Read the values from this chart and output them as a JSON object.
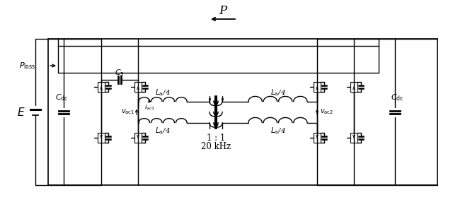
{
  "bg_color": "#ffffff",
  "fig_width": 6.4,
  "fig_height": 3.1,
  "dpi": 100,
  "label_P": "P",
  "label_Ploss": "$P_{\\mathrm{loss}}$",
  "label_E": "$E$",
  "label_Cdc": "$C_{\\mathrm{dc}}$",
  "label_Cs": "$C_{\\mathrm{s}}$",
  "label_La4": "$L_{\\mathrm{a}}$/4",
  "label_vac1": "$v_{\\mathrm{ac1}}$",
  "label_vac2": "$v_{\\mathrm{ac2}}$",
  "label_iac1": "$i_{\\mathrm{ac1}}$",
  "label_ratio": "1 : 1",
  "label_freq": "20 kHz"
}
